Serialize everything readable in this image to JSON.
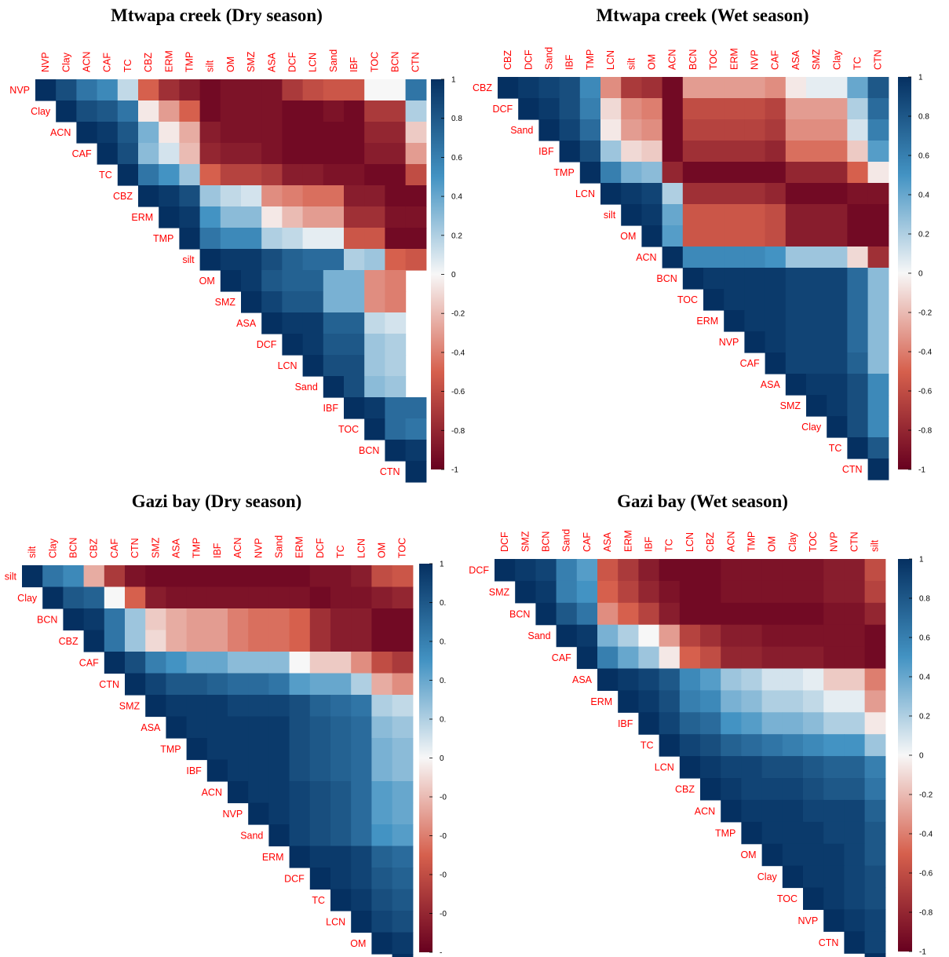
{
  "colors": {
    "strong_negative": "#67001f",
    "negative": "#d6604d",
    "neutral": "#f7f7f7",
    "positive": "#4393c3",
    "strong_positive": "#053061",
    "label": "#ff0000"
  },
  "colorbar": {
    "ticks_full": [
      "1",
      "0.8",
      "0.6",
      "0.4",
      "0.2",
      "0",
      "-0.2",
      "-0.4",
      "-0.6",
      "-0.8",
      "-1"
    ],
    "ticks_truncated": [
      "1",
      "0.",
      "0.",
      "0.",
      "0.",
      "0",
      "-0",
      "-0",
      "-0",
      "-0",
      "-"
    ]
  },
  "chart_data": [
    {
      "type": "heatmap",
      "title": "Mtwapa creek (Dry season)",
      "variables": [
        "NVP",
        "Clay",
        "ACN",
        "CAF",
        "TC",
        "CBZ",
        "ERM",
        "TMP",
        "silt",
        "OM",
        "SMZ",
        "ASA",
        "DCF",
        "LCN",
        "Sand",
        "IBF",
        "TOC",
        "BCN",
        "CTN"
      ],
      "layout": "upper-triangle",
      "value_range": [
        -1,
        1
      ],
      "rows": [
        [
          0.85,
          0.65,
          0.55,
          0.15,
          -0.5,
          -0.75,
          -0.85,
          -0.95,
          -0.9,
          -0.9,
          -0.9,
          -0.7,
          -0.6,
          -0.55,
          -0.55,
          0.0,
          0.0,
          0.65,
          0.75
        ],
        [
          0.85,
          0.8,
          0.65,
          -0.05,
          -0.3,
          -0.5,
          -0.95,
          -0.9,
          -0.9,
          -0.9,
          -0.95,
          -0.95,
          -0.9,
          -0.95,
          -0.7,
          -0.7,
          0.2,
          0.3
        ],
        [
          0.95,
          0.8,
          0.35,
          -0.05,
          -0.25,
          -0.85,
          -0.9,
          -0.9,
          -0.9,
          -0.95,
          -0.95,
          -0.95,
          -0.95,
          -0.8,
          -0.8,
          -0.15,
          0.05
        ],
        [
          0.85,
          0.3,
          0.1,
          -0.2,
          -0.8,
          -0.85,
          -0.85,
          -0.9,
          -0.95,
          -0.95,
          -0.95,
          -0.95,
          -0.85,
          -0.85,
          -0.3,
          -0.2
        ],
        [
          0.65,
          0.5,
          0.25,
          -0.5,
          -0.65,
          -0.65,
          -0.7,
          -0.85,
          -0.85,
          -0.9,
          -0.9,
          -0.95,
          -0.95,
          -0.6,
          -0.55
        ],
        [
          0.95,
          0.85,
          0.25,
          0.15,
          0.1,
          -0.35,
          -0.4,
          -0.45,
          -0.45,
          -0.85,
          -0.85,
          -0.95,
          -0.95
        ],
        [
          0.95,
          0.5,
          0.3,
          0.3,
          -0.05,
          -0.2,
          -0.3,
          -0.3,
          -0.75,
          -0.75,
          -0.9,
          -0.9
        ],
        [
          0.65,
          0.55,
          0.55,
          0.2,
          0.15,
          0.05,
          0.05,
          -0.55,
          -0.55,
          -0.95,
          -0.95
        ],
        [
          0.95,
          0.95,
          0.85,
          0.75,
          0.7,
          0.7,
          0.2,
          0.25,
          -0.5,
          -0.55
        ],
        [
          0.95,
          0.8,
          0.75,
          0.75,
          0.35,
          0.35,
          -0.35,
          -0.4
        ],
        [
          0.9,
          0.8,
          0.8,
          0.35,
          0.35,
          -0.35,
          -0.4
        ],
        [
          0.95,
          0.95,
          0.75,
          0.75,
          0.15,
          0.1
        ],
        [
          0.95,
          0.8,
          0.8,
          0.25,
          0.2
        ],
        [
          0.85,
          0.85,
          0.25,
          0.2
        ],
        [
          0.85,
          0.3,
          0.25
        ],
        [
          0.95,
          0.7,
          0.7
        ],
        [
          0.7,
          0.65
        ],
        [
          0.95
        ]
      ]
    },
    {
      "type": "heatmap",
      "title": "Mtwapa creek (Wet season)",
      "variables": [
        "CBZ",
        "DCF",
        "Sand",
        "IBF",
        "TMP",
        "LCN",
        "silt",
        "OM",
        "ACN",
        "BCN",
        "TOC",
        "ERM",
        "NVP",
        "CAF",
        "ASA",
        "SMZ",
        "Clay",
        "TC",
        "CTN"
      ],
      "layout": "upper-triangle",
      "value_range": [
        -1,
        1
      ],
      "rows": [
        [
          0.95,
          0.9,
          0.85,
          0.55,
          -0.35,
          -0.7,
          -0.75,
          -0.95,
          -0.3,
          -0.3,
          -0.3,
          -0.3,
          -0.35,
          -0.05,
          0.05,
          0.05,
          0.4,
          0.8
        ],
        [
          0.95,
          0.85,
          0.6,
          -0.1,
          -0.35,
          -0.4,
          -0.95,
          -0.6,
          -0.6,
          -0.6,
          -0.6,
          -0.65,
          -0.3,
          -0.3,
          -0.3,
          0.2,
          0.7
        ],
        [
          0.9,
          0.7,
          -0.05,
          -0.3,
          -0.35,
          -0.95,
          -0.65,
          -0.65,
          -0.65,
          -0.65,
          -0.7,
          -0.35,
          -0.35,
          -0.35,
          0.1,
          0.6
        ],
        [
          0.85,
          0.25,
          -0.1,
          -0.15,
          -0.95,
          -0.75,
          -0.75,
          -0.75,
          -0.75,
          -0.8,
          -0.45,
          -0.45,
          -0.45,
          -0.15,
          0.45
        ],
        [
          0.6,
          0.35,
          0.3,
          -0.8,
          -0.95,
          -0.95,
          -0.95,
          -0.95,
          -0.95,
          -0.8,
          -0.8,
          -0.8,
          -0.5,
          -0.05
        ],
        [
          0.95,
          0.9,
          0.2,
          -0.75,
          -0.75,
          -0.75,
          -0.75,
          -0.8,
          -0.95,
          -0.95,
          -0.95,
          -0.9,
          -0.9
        ],
        [
          0.95,
          0.4,
          -0.55,
          -0.55,
          -0.55,
          -0.55,
          -0.6,
          -0.85,
          -0.85,
          -0.85,
          -0.95,
          -0.95
        ],
        [
          0.45,
          -0.55,
          -0.55,
          -0.55,
          -0.55,
          -0.6,
          -0.85,
          -0.85,
          -0.85,
          -0.95,
          -0.95
        ],
        [
          0.55,
          0.55,
          0.55,
          0.55,
          0.5,
          0.25,
          0.25,
          0.25,
          -0.1,
          -0.75
        ],
        [
          0.95,
          0.95,
          0.95,
          0.95,
          0.9,
          0.9,
          0.9,
          0.7,
          0.3
        ],
        [
          0.95,
          0.95,
          0.95,
          0.9,
          0.9,
          0.9,
          0.7,
          0.3
        ],
        [
          0.95,
          0.95,
          0.9,
          0.9,
          0.9,
          0.7,
          0.3
        ],
        [
          0.95,
          0.9,
          0.9,
          0.9,
          0.7,
          0.3
        ],
        [
          0.9,
          0.9,
          0.9,
          0.75,
          0.3
        ],
        [
          0.95,
          0.95,
          0.85,
          0.55
        ],
        [
          0.95,
          0.85,
          0.55
        ],
        [
          0.85,
          0.55
        ],
        [
          0.8
        ]
      ]
    },
    {
      "type": "heatmap",
      "title": "Gazi bay (Dry season)",
      "variables": [
        "silt",
        "Clay",
        "BCN",
        "CBZ",
        "CAF",
        "CTN",
        "SMZ",
        "ASA",
        "TMP",
        "IBF",
        "ACN",
        "NVP",
        "Sand",
        "ERM",
        "DCF",
        "TC",
        "LCN",
        "OM",
        "TOC"
      ],
      "layout": "upper-triangle",
      "value_range": [
        -1,
        1
      ],
      "rows": [
        [
          0.65,
          0.55,
          -0.25,
          -0.7,
          -0.9,
          -0.95,
          -0.95,
          -0.95,
          -0.95,
          -0.95,
          -0.95,
          -0.95,
          -0.95,
          -0.9,
          -0.9,
          -0.85,
          -0.6,
          -0.55
        ],
        [
          0.8,
          0.75,
          0.0,
          -0.5,
          -0.85,
          -0.9,
          -0.9,
          -0.9,
          -0.9,
          -0.9,
          -0.9,
          -0.9,
          -0.95,
          -0.9,
          -0.9,
          -0.85,
          -0.8,
          -0.75
        ],
        [
          0.95,
          0.65,
          0.25,
          -0.15,
          -0.25,
          -0.3,
          -0.3,
          -0.4,
          -0.45,
          -0.45,
          -0.5,
          -0.75,
          -0.85,
          -0.85,
          -0.95,
          -0.95,
          -0.95
        ],
        [
          0.65,
          0.25,
          -0.1,
          -0.25,
          -0.3,
          -0.3,
          -0.4,
          -0.45,
          -0.45,
          -0.5,
          -0.75,
          -0.85,
          -0.85,
          -0.95,
          -0.95,
          -0.95
        ],
        [
          0.85,
          0.6,
          0.5,
          0.4,
          0.4,
          0.3,
          0.3,
          0.3,
          0.0,
          -0.15,
          -0.15,
          -0.35,
          -0.6,
          -0.7
        ],
        [
          0.9,
          0.8,
          0.8,
          0.75,
          0.7,
          0.7,
          0.65,
          0.45,
          0.4,
          0.4,
          0.2,
          -0.25,
          -0.35
        ],
        [
          0.95,
          0.95,
          0.95,
          0.9,
          0.9,
          0.9,
          0.85,
          0.75,
          0.7,
          0.65,
          0.2,
          0.15
        ],
        [
          0.95,
          0.95,
          0.95,
          0.95,
          0.95,
          0.85,
          0.8,
          0.75,
          0.7,
          0.3,
          0.25
        ],
        [
          0.95,
          0.95,
          0.95,
          0.95,
          0.85,
          0.8,
          0.75,
          0.7,
          0.35,
          0.3
        ],
        [
          0.95,
          0.95,
          0.95,
          0.85,
          0.8,
          0.75,
          0.7,
          0.35,
          0.3
        ],
        [
          0.95,
          0.95,
          0.9,
          0.85,
          0.8,
          0.7,
          0.45,
          0.4
        ],
        [
          0.95,
          0.9,
          0.85,
          0.8,
          0.7,
          0.45,
          0.4
        ],
        [
          0.9,
          0.85,
          0.8,
          0.7,
          0.5,
          0.45
        ],
        [
          0.95,
          0.95,
          0.9,
          0.75,
          0.7
        ],
        [
          0.95,
          0.9,
          0.8,
          0.75
        ],
        [
          0.95,
          0.85,
          0.8
        ],
        [
          0.9,
          0.85
        ],
        [
          0.95
        ]
      ]
    },
    {
      "type": "heatmap",
      "title": "Gazi bay (Wet season)",
      "variables": [
        "DCF",
        "SMZ",
        "BCN",
        "Sand",
        "CAF",
        "ASA",
        "ERM",
        "IBF",
        "TC",
        "LCN",
        "CBZ",
        "ACN",
        "TMP",
        "OM",
        "Clay",
        "TOC",
        "NVP",
        "CTN",
        "silt"
      ],
      "layout": "upper-triangle",
      "value_range": [
        -1,
        1
      ],
      "rows": [
        [
          0.95,
          0.9,
          0.6,
          0.45,
          -0.55,
          -0.7,
          -0.85,
          -0.95,
          -0.95,
          -0.95,
          -0.9,
          -0.9,
          -0.9,
          -0.9,
          -0.9,
          -0.85,
          -0.85,
          -0.6
        ],
        [
          0.95,
          0.6,
          0.5,
          -0.5,
          -0.65,
          -0.8,
          -0.9,
          -0.95,
          -0.95,
          -0.9,
          -0.9,
          -0.9,
          -0.9,
          -0.9,
          -0.85,
          -0.85,
          -0.65
        ],
        [
          0.8,
          0.65,
          -0.35,
          -0.5,
          -0.65,
          -0.85,
          -0.95,
          -0.95,
          -0.95,
          -0.95,
          -0.95,
          -0.95,
          -0.95,
          -0.9,
          -0.9,
          -0.8
        ],
        [
          0.95,
          0.35,
          0.2,
          0.0,
          -0.3,
          -0.65,
          -0.75,
          -0.85,
          -0.85,
          -0.9,
          -0.9,
          -0.9,
          -0.9,
          -0.9,
          -0.95
        ],
        [
          0.6,
          0.4,
          0.25,
          -0.05,
          -0.5,
          -0.6,
          -0.8,
          -0.8,
          -0.85,
          -0.85,
          -0.85,
          -0.9,
          -0.9,
          -0.95
        ],
        [
          0.95,
          0.9,
          0.8,
          0.55,
          0.45,
          0.25,
          0.2,
          0.1,
          0.1,
          0.05,
          -0.15,
          -0.15,
          -0.4
        ],
        [
          0.95,
          0.85,
          0.6,
          0.55,
          0.35,
          0.3,
          0.2,
          0.2,
          0.15,
          0.05,
          0.05,
          -0.3
        ],
        [
          0.9,
          0.75,
          0.7,
          0.5,
          0.45,
          0.35,
          0.35,
          0.3,
          0.2,
          0.2,
          -0.05
        ],
        [
          0.9,
          0.85,
          0.75,
          0.7,
          0.65,
          0.6,
          0.55,
          0.5,
          0.5,
          0.25
        ],
        [
          0.95,
          0.9,
          0.9,
          0.85,
          0.85,
          0.8,
          0.75,
          0.75,
          0.6
        ],
        [
          0.95,
          0.9,
          0.9,
          0.9,
          0.85,
          0.8,
          0.8,
          0.65
        ],
        [
          0.95,
          0.95,
          0.95,
          0.9,
          0.9,
          0.9,
          0.75
        ],
        [
          0.95,
          0.95,
          0.95,
          0.9,
          0.9,
          0.8
        ],
        [
          0.95,
          0.95,
          0.95,
          0.9,
          0.8
        ],
        [
          0.95,
          0.95,
          0.9,
          0.85
        ],
        [
          0.95,
          0.9,
          0.85
        ],
        [
          0.95,
          0.9
        ],
        [
          0.9
        ]
      ]
    }
  ]
}
